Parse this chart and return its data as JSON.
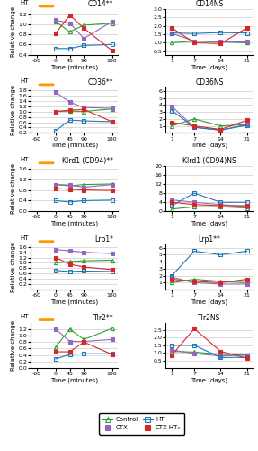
{
  "panels": [
    {
      "title_left": "CD14**",
      "title_right": "CD14",
      "sup_right": "NS",
      "ht_bar": true,
      "left": {
        "xvals": [
          -60,
          0,
          45,
          90,
          180
        ],
        "xlabel": "Time (minutes)",
        "ylim": [
          0.4,
          1.3
        ],
        "yticks": [
          0.4,
          0.6,
          0.8,
          1.0,
          1.2
        ],
        "control": [
          null,
          1.05,
          0.85,
          0.98,
          1.02
        ],
        "ctx": [
          null,
          1.08,
          1.02,
          0.72,
          1.05
        ],
        "ht": [
          null,
          0.52,
          0.52,
          0.58,
          0.6
        ],
        "ctxht": [
          null,
          0.82,
          1.18,
          0.92,
          0.48
        ]
      },
      "right": {
        "xvals": [
          1,
          7,
          14,
          21
        ],
        "xlabel": "Time (days)",
        "ylim": [
          0.3,
          3.0
        ],
        "yticks": [
          0.5,
          1.0,
          1.5,
          2.0,
          2.5,
          3.0
        ],
        "control": [
          1.0,
          1.1,
          1.05,
          1.0
        ],
        "ctx": [
          1.55,
          1.1,
          1.05,
          1.05
        ],
        "ht": [
          1.58,
          1.55,
          1.6,
          1.58
        ],
        "ctxht": [
          1.88,
          1.0,
          0.95,
          1.88
        ]
      }
    },
    {
      "title_left": "CD36**",
      "title_right": "CD36",
      "sup_right": "NS",
      "ht_bar": true,
      "left": {
        "xvals": [
          -60,
          0,
          45,
          90,
          180
        ],
        "xlabel": "Time (minutes)",
        "ylim": [
          0.2,
          1.9
        ],
        "yticks": [
          0.2,
          0.4,
          0.6,
          0.8,
          1.0,
          1.2,
          1.4,
          1.6,
          1.8
        ],
        "control": [
          null,
          1.0,
          1.02,
          1.0,
          1.1
        ],
        "ctx": [
          null,
          1.72,
          1.35,
          1.15,
          1.12
        ],
        "ht": [
          null,
          0.28,
          0.68,
          0.65,
          0.62
        ],
        "ctxht": [
          null,
          1.0,
          1.05,
          1.08,
          0.62
        ]
      },
      "right": {
        "xvals": [
          1,
          7,
          14,
          21
        ],
        "xlabel": "Time (days)",
        "ylim": [
          0.0,
          6.5
        ],
        "yticks": [
          1,
          2,
          3,
          4,
          5,
          6
        ],
        "control": [
          1.0,
          2.0,
          1.0,
          1.2
        ],
        "ctx": [
          3.8,
          0.8,
          0.4,
          1.2
        ],
        "ht": [
          3.2,
          0.8,
          0.4,
          1.1
        ],
        "ctxht": [
          1.5,
          1.0,
          0.5,
          1.8
        ]
      }
    },
    {
      "title_left": "Klrd1 (CD94)**",
      "title_right": "Klrd1 (CD94)",
      "sup_right": "NS",
      "ht_bar": true,
      "left": {
        "xvals": [
          -60,
          0,
          45,
          90,
          180
        ],
        "xlabel": "Time (minutes)",
        "ylim": [
          0.0,
          1.7
        ],
        "yticks": [
          0.0,
          0.4,
          0.8,
          1.2,
          1.6
        ],
        "control": [
          null,
          1.0,
          0.95,
          1.0,
          1.02
        ],
        "ctx": [
          null,
          1.0,
          0.98,
          0.9,
          1.0
        ],
        "ht": [
          null,
          0.4,
          0.35,
          0.4,
          0.42
        ],
        "ctxht": [
          null,
          0.85,
          0.82,
          0.8,
          0.78
        ]
      },
      "right": {
        "xvals": [
          1,
          7,
          14,
          21
        ],
        "xlabel": "Time (days)",
        "ylim": [
          0.0,
          20.0
        ],
        "yticks": [
          0,
          4,
          8,
          12,
          16,
          20
        ],
        "control": [
          1.0,
          2.0,
          2.0,
          1.5
        ],
        "ctx": [
          5.0,
          4.0,
          3.0,
          2.0
        ],
        "ht": [
          2.5,
          8.0,
          4.0,
          4.0
        ],
        "ctxht": [
          4.0,
          3.0,
          2.5,
          2.5
        ]
      }
    },
    {
      "title_left": "Lrp1*",
      "title_right": "Lrp1**",
      "sup_right": "",
      "ht_bar": true,
      "left": {
        "xvals": [
          -60,
          0,
          45,
          90,
          180
        ],
        "xlabel": "Time (minutes)",
        "ylim": [
          0.0,
          1.7
        ],
        "yticks": [
          0.2,
          0.4,
          0.6,
          0.8,
          1.0,
          1.2,
          1.4,
          1.6
        ],
        "control": [
          null,
          1.0,
          1.05,
          1.08,
          1.1
        ],
        "ctx": [
          null,
          1.5,
          1.45,
          1.4,
          1.35
        ],
        "ht": [
          null,
          0.72,
          0.68,
          0.7,
          0.68
        ],
        "ctxht": [
          null,
          1.2,
          0.95,
          0.85,
          0.75
        ]
      },
      "right": {
        "xvals": [
          1,
          7,
          14,
          21
        ],
        "xlabel": "Time (days)",
        "ylim": [
          0.0,
          6.5
        ],
        "yticks": [
          1,
          2,
          3,
          4,
          5,
          6
        ],
        "control": [
          1.0,
          1.5,
          1.2,
          1.0
        ],
        "ctx": [
          1.8,
          1.0,
          0.8,
          0.8
        ],
        "ht": [
          2.0,
          5.5,
          5.0,
          5.5
        ],
        "ctxht": [
          1.5,
          1.2,
          1.0,
          1.5
        ]
      }
    },
    {
      "title_left": "Tlr2**",
      "title_right": "Tlr2",
      "sup_right": "NS",
      "ht_bar": true,
      "left": {
        "xvals": [
          -60,
          0,
          45,
          90,
          180
        ],
        "xlabel": "Time (minutes)",
        "ylim": [
          0.0,
          1.4
        ],
        "yticks": [
          0.0,
          0.2,
          0.4,
          0.6,
          0.8,
          1.0,
          1.2
        ],
        "control": [
          null,
          0.65,
          1.2,
          0.88,
          1.22
        ],
        "ctx": [
          null,
          1.2,
          0.82,
          0.82,
          0.88
        ],
        "ht": [
          null,
          0.28,
          0.42,
          0.44,
          0.44
        ],
        "ctxht": [
          null,
          0.5,
          0.5,
          0.8,
          0.42
        ]
      },
      "right": {
        "xvals": [
          1,
          7,
          14,
          21
        ],
        "xlabel": "Time (days)",
        "ylim": [
          0.0,
          3.0
        ],
        "yticks": [
          0.5,
          1.0,
          1.5,
          2.0,
          2.5
        ],
        "control": [
          1.1,
          1.05,
          0.9,
          0.85
        ],
        "ctx": [
          1.2,
          0.95,
          0.8,
          0.85
        ],
        "ht": [
          1.5,
          1.5,
          0.7,
          0.7
        ],
        "ctxht": [
          0.85,
          2.6,
          1.1,
          0.65
        ]
      }
    }
  ],
  "colors": {
    "control": "#2ca02c",
    "ctx": "#9467bd",
    "ht": "#1f77b4",
    "ctxht": "#d62728"
  },
  "ht_bar_color": "#ff9900",
  "legend_labels": [
    "Control",
    "CTX",
    "HT",
    "CTX-HT₀"
  ]
}
